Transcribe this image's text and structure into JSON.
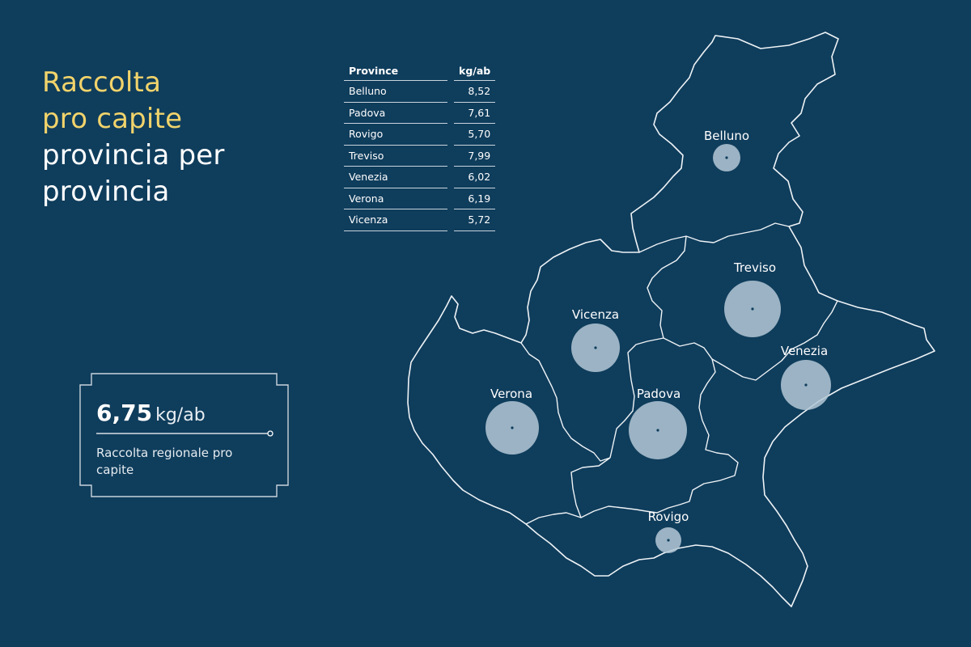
{
  "title": {
    "line1": "Raccolta",
    "line2": "pro capite",
    "line3": "provincia per",
    "line4": "provincia"
  },
  "table": {
    "headers": [
      "Province",
      "kg/ab"
    ],
    "rows": [
      {
        "province": "Belluno",
        "value": "8,52"
      },
      {
        "province": "Padova",
        "value": "7,61"
      },
      {
        "province": "Rovigo",
        "value": "5,70"
      },
      {
        "province": "Treviso",
        "value": "7,99"
      },
      {
        "province": "Venezia",
        "value": "6,02"
      },
      {
        "province": "Verona",
        "value": "6,19"
      },
      {
        "province": "Vicenza",
        "value": "5,72"
      }
    ]
  },
  "regional": {
    "value": "6,75",
    "unit": "kg/ab",
    "label": "Raccolta regionale pro capite"
  },
  "map": {
    "labels": {
      "belluno": "Belluno",
      "treviso": "Treviso",
      "vicenza": "Vicenza",
      "venezia": "Venezia",
      "verona": "Verona",
      "padova": "Padova",
      "rovigo": "Rovigo"
    },
    "colors": {
      "background": "#0f3d5c",
      "highlight": "#f1d36b",
      "bubble": "#b4c8d6",
      "border": "#ffffff"
    }
  }
}
